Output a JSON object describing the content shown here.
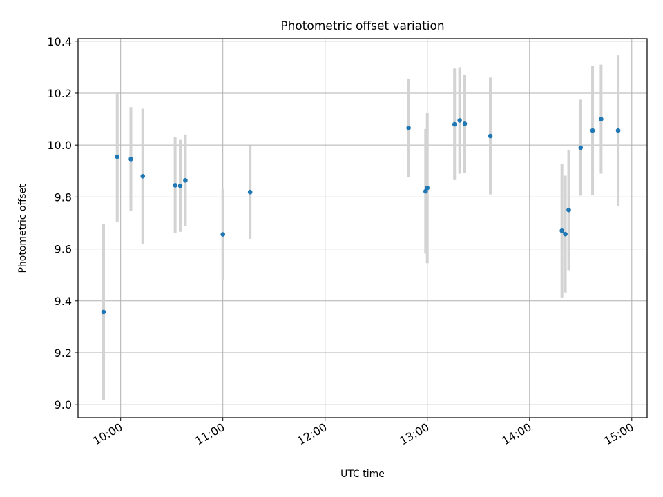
{
  "chart_data": {
    "type": "scatter",
    "title": "Photometric offset variation",
    "xlabel": "UTC time",
    "ylabel": "Photometric offset",
    "x_ticks": [
      "10:00",
      "11:00",
      "12:00",
      "13:00",
      "14:00",
      "15:00"
    ],
    "x_tick_values": [
      "10:00",
      "11:00",
      "12:00",
      "13:00",
      "14:00",
      "15:00"
    ],
    "xlim": [
      "09:35",
      "15:09"
    ],
    "ylim": [
      8.95,
      10.41
    ],
    "y_ticks": [
      "9.0",
      "9.2",
      "9.4",
      "9.6",
      "9.8",
      "10.0",
      "10.2",
      "10.4"
    ],
    "y_tick_values": [
      9.0,
      9.2,
      9.4,
      9.6,
      9.8,
      10.0,
      10.2,
      10.4
    ],
    "grid": true,
    "marker_color": "#1f77b4",
    "errorbar_color": "#d3d3d3",
    "points": [
      {
        "x": "09:50",
        "y": 9.357,
        "err": 0.34
      },
      {
        "x": "09:58",
        "y": 9.955,
        "err": 0.25
      },
      {
        "x": "10:06",
        "y": 9.946,
        "err": 0.2
      },
      {
        "x": "10:13",
        "y": 9.88,
        "err": 0.26
      },
      {
        "x": "10:32",
        "y": 9.845,
        "err": 0.185
      },
      {
        "x": "10:35",
        "y": 9.843,
        "err": 0.177
      },
      {
        "x": "10:38",
        "y": 9.864,
        "err": 0.177
      },
      {
        "x": "11:00",
        "y": 9.656,
        "err": 0.175
      },
      {
        "x": "11:16",
        "y": 9.819,
        "err": 0.18
      },
      {
        "x": "12:49",
        "y": 10.066,
        "err": 0.19
      },
      {
        "x": "12:59",
        "y": 9.822,
        "err": 0.24
      },
      {
        "x": "13:00",
        "y": 9.835,
        "err": 0.29
      },
      {
        "x": "13:16",
        "y": 10.08,
        "err": 0.215
      },
      {
        "x": "13:19",
        "y": 10.095,
        "err": 0.205
      },
      {
        "x": "13:22",
        "y": 10.082,
        "err": 0.19
      },
      {
        "x": "13:37",
        "y": 10.035,
        "err": 0.225
      },
      {
        "x": "14:19",
        "y": 9.67,
        "err": 0.257
      },
      {
        "x": "14:21",
        "y": 9.657,
        "err": 0.225
      },
      {
        "x": "14:23",
        "y": 9.75,
        "err": 0.232
      },
      {
        "x": "14:30",
        "y": 9.99,
        "err": 0.185
      },
      {
        "x": "14:37",
        "y": 10.056,
        "err": 0.25
      },
      {
        "x": "14:42",
        "y": 10.1,
        "err": 0.21
      },
      {
        "x": "14:52",
        "y": 10.056,
        "err": 0.29
      }
    ]
  }
}
